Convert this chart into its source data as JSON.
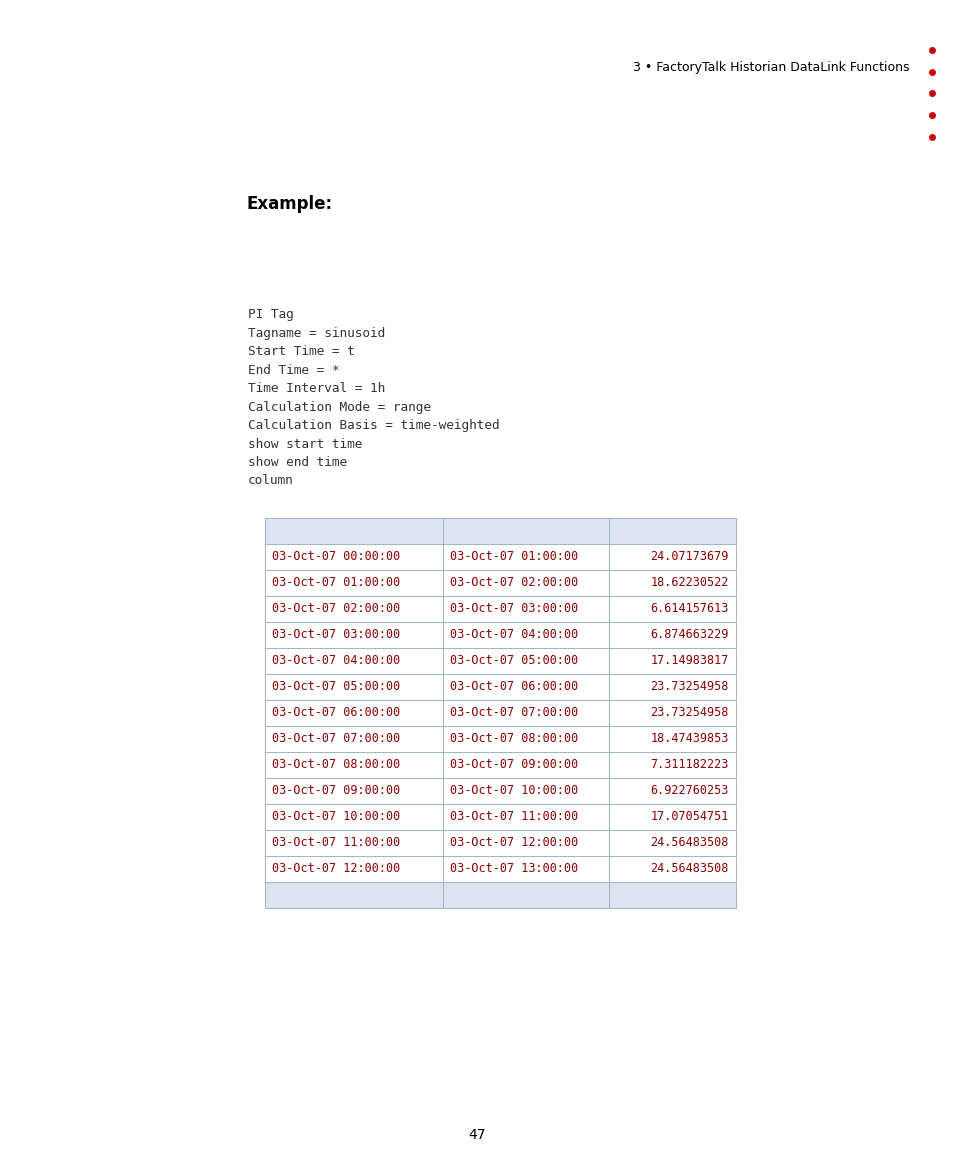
{
  "header_text": "3 • FactoryTalk Historian DataLink Functions",
  "example_label": "Example:",
  "code_lines": [
    "PI Tag",
    "Tagname = sinusoid",
    "Start Time = t",
    "End Time = *",
    "Time Interval = 1h",
    "Calculation Mode = range",
    "Calculation Basis = time-weighted",
    "show start time",
    "show end time",
    "column"
  ],
  "table_col1": [
    "03-Oct-07 00:00:00",
    "03-Oct-07 01:00:00",
    "03-Oct-07 02:00:00",
    "03-Oct-07 03:00:00",
    "03-Oct-07 04:00:00",
    "03-Oct-07 05:00:00",
    "03-Oct-07 06:00:00",
    "03-Oct-07 07:00:00",
    "03-Oct-07 08:00:00",
    "03-Oct-07 09:00:00",
    "03-Oct-07 10:00:00",
    "03-Oct-07 11:00:00",
    "03-Oct-07 12:00:00"
  ],
  "table_col2": [
    "03-Oct-07 01:00:00",
    "03-Oct-07 02:00:00",
    "03-Oct-07 03:00:00",
    "03-Oct-07 04:00:00",
    "03-Oct-07 05:00:00",
    "03-Oct-07 06:00:00",
    "03-Oct-07 07:00:00",
    "03-Oct-07 08:00:00",
    "03-Oct-07 09:00:00",
    "03-Oct-07 10:00:00",
    "03-Oct-07 11:00:00",
    "03-Oct-07 12:00:00",
    "03-Oct-07 13:00:00"
  ],
  "table_col3": [
    "24.07173679",
    "18.62230522",
    "6.614157613",
    "6.874663229",
    "17.14983817",
    "23.73254958",
    "23.73254958",
    "18.47439853",
    "7.311182223",
    "6.922760253",
    "17.07054751",
    "24.56483508",
    "24.56483508"
  ],
  "page_number": "47",
  "bullet_color": "#cc0000",
  "header_color": "#000000",
  "table_text_color": "#8B0000",
  "code_text_color": "#333333",
  "background_color": "#ffffff",
  "table_border_color": "#a0b4c8",
  "table_header_bg": "#dde4ef"
}
